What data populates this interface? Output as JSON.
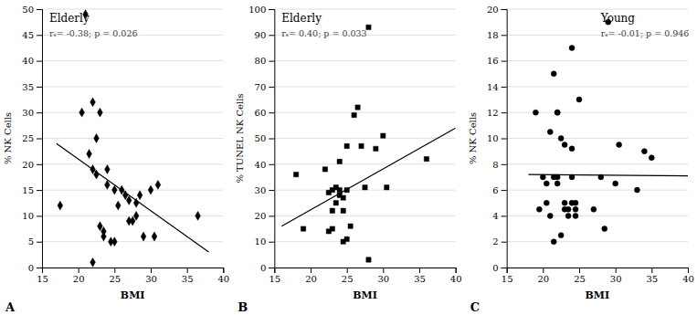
{
  "chart_data": [
    {
      "type": "scatter",
      "title": "Elderly",
      "annotation": "rₛ= -0.38; p = 0.026",
      "xlabel": "BMI",
      "ylabel": "% NK Cells",
      "panel_label": "A",
      "xlim": [
        15,
        40
      ],
      "ylim": [
        0,
        50
      ],
      "xticks": [
        15,
        20,
        25,
        30,
        35,
        40
      ],
      "yticks": [
        0,
        5,
        10,
        15,
        20,
        25,
        30,
        35,
        40,
        45,
        50
      ],
      "grid": "y",
      "series": [
        {
          "type": "scatter",
          "marker": "diamond",
          "color": "#000000",
          "x": [
            17.5,
            20.5,
            21,
            21.5,
            22,
            22,
            22.5,
            22.5,
            23,
            23,
            23.5,
            23.5,
            24,
            24,
            24.5,
            25,
            25,
            25.5,
            26,
            26.5,
            27,
            27,
            27.5,
            28,
            28,
            28.5,
            29,
            30,
            30.5,
            31,
            36.5,
            22
          ],
          "values": [
            12,
            30,
            49,
            22,
            32,
            19,
            18,
            25,
            30,
            8,
            7,
            6,
            16,
            19,
            5,
            15,
            5,
            12,
            15,
            14,
            9,
            13,
            9,
            12.5,
            10,
            14,
            6,
            15,
            6,
            16,
            10,
            1
          ]
        },
        {
          "type": "line",
          "color": "#000000",
          "x": [
            17,
            38
          ],
          "values": [
            24.0,
            3.0
          ]
        }
      ]
    },
    {
      "type": "scatter",
      "title": "Elderly",
      "annotation": "rₛ= 0.40; p = 0.033",
      "xlabel": "BMI",
      "ylabel": "% TUNEL NK Cells",
      "panel_label": "B",
      "xlim": [
        15,
        40
      ],
      "ylim": [
        0,
        100
      ],
      "xticks": [
        15,
        20,
        25,
        30,
        35,
        40
      ],
      "yticks": [
        0,
        10,
        20,
        30,
        40,
        50,
        60,
        70,
        80,
        90,
        100
      ],
      "grid": "y",
      "series": [
        {
          "type": "scatter",
          "marker": "square",
          "color": "#000000",
          "x": [
            18,
            19,
            22,
            22.5,
            22.5,
            23,
            23,
            23,
            23.5,
            23.5,
            24,
            24,
            24,
            24.5,
            24.5,
            25,
            25,
            25,
            25.5,
            26,
            26.5,
            27,
            27.5,
            28,
            28,
            29,
            30,
            30.5,
            36,
            24.5
          ],
          "values": [
            36,
            15,
            38,
            29,
            14,
            22,
            30,
            15,
            31,
            25,
            30,
            41,
            28,
            27,
            22,
            47,
            30,
            11,
            16,
            59,
            62,
            47,
            31,
            3,
            93,
            46,
            51,
            31,
            42,
            10
          ]
        },
        {
          "type": "line",
          "color": "#000000",
          "x": [
            16,
            40
          ],
          "values": [
            16,
            54
          ]
        }
      ]
    },
    {
      "type": "scatter",
      "title": "Young",
      "annotation": "rₛ= -0.01; p = 0.946",
      "xlabel": "BMI",
      "ylabel": "% NK Cells",
      "panel_label": "C",
      "xlim": [
        15,
        40
      ],
      "ylim": [
        0,
        20
      ],
      "xticks": [
        15,
        20,
        25,
        30,
        35,
        40
      ],
      "yticks": [
        0,
        2,
        4,
        6,
        8,
        10,
        12,
        14,
        16,
        18,
        20
      ],
      "grid": "y",
      "series": [
        {
          "type": "scatter",
          "marker": "circle",
          "color": "#000000",
          "x": [
            19,
            19.5,
            20,
            20.5,
            20.5,
            21,
            21,
            21.5,
            21.5,
            22,
            22,
            22,
            22.5,
            22.5,
            23,
            23,
            23,
            23.5,
            24,
            24,
            24.5,
            24.5,
            24.5,
            25,
            28,
            29,
            30,
            30.5,
            33,
            34,
            35,
            21.5,
            22,
            23.5,
            24,
            27,
            28.5,
            24
          ],
          "values": [
            12,
            4.5,
            7,
            6.5,
            5,
            4,
            10.5,
            7,
            2,
            12,
            7,
            6.5,
            10,
            2.5,
            5,
            4.5,
            9.5,
            4.5,
            17,
            9.2,
            5,
            4,
            4.5,
            13,
            7,
            19,
            6.5,
            9.5,
            6,
            9,
            8.5,
            15,
            12,
            4,
            5,
            4.5,
            3,
            7
          ]
        },
        {
          "type": "line",
          "color": "#000000",
          "x": [
            18,
            40
          ],
          "values": [
            7.2,
            7.1
          ]
        }
      ]
    }
  ]
}
